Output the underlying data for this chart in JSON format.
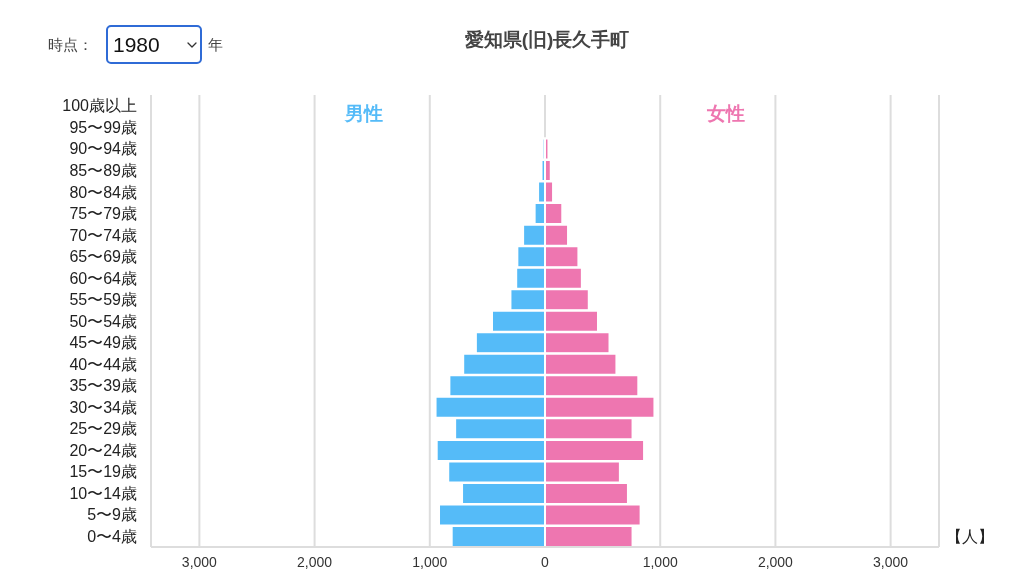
{
  "chart_data": {
    "type": "bar",
    "orientation": "horizontal",
    "stacked": true,
    "title": "愛知県(旧)長久手町",
    "xlabel": "【人】",
    "annotations": [
      "時点：",
      "1980",
      "年"
    ],
    "categories": [
      "100歳以上",
      "95〜99歳",
      "90〜94歳",
      "85〜89歳",
      "80〜84歳",
      "75〜79歳",
      "70〜74歳",
      "65〜69歳",
      "60〜64歳",
      "55〜59歳",
      "50〜54歳",
      "45〜49歳",
      "40〜44歳",
      "35〜39歳",
      "30〜34歳",
      "25〜29歳",
      "20〜24歳",
      "15〜19歳",
      "10〜14歳",
      "5〜9歳",
      "0〜4歳"
    ],
    "series": [
      {
        "name": "男性",
        "color": "#55bbf8",
        "values": [
          0,
          0,
          -20,
          -30,
          -60,
          -90,
          -190,
          -240,
          -250,
          -300,
          -460,
          -600,
          -710,
          -830,
          -950,
          -780,
          -940,
          -840,
          -720,
          -920,
          -810
        ]
      },
      {
        "name": "女性",
        "color": "#ee76b0",
        "values": [
          0,
          0,
          30,
          50,
          70,
          150,
          200,
          290,
          320,
          380,
          460,
          560,
          620,
          810,
          950,
          760,
          860,
          650,
          720,
          830,
          760
        ]
      }
    ],
    "xlim": [
      -3420,
      3420
    ],
    "xticks": [
      {
        "value": -3000,
        "label": "3,000"
      },
      {
        "value": -2000,
        "label": "2,000"
      },
      {
        "value": -1000,
        "label": "1,000"
      },
      0,
      {
        "value": 1000,
        "label": "1,000"
      },
      {
        "value": 2000,
        "label": "2,000"
      },
      {
        "value": 3000,
        "label": "3,000"
      }
    ],
    "grid": "x"
  }
}
